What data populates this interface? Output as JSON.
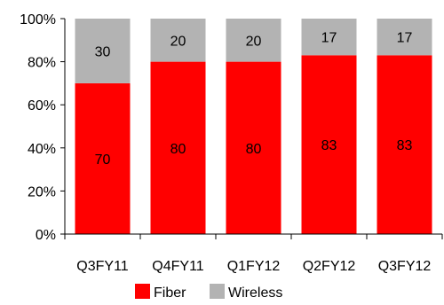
{
  "chart_data": {
    "type": "bar",
    "stacked": true,
    "categories": [
      "Q3FY11",
      "Q4FY11",
      "Q1FY12",
      "Q2FY12",
      "Q3FY12"
    ],
    "series": [
      {
        "name": "Fiber",
        "color": "#ff0000",
        "values": [
          70,
          80,
          80,
          83,
          83
        ]
      },
      {
        "name": "Wireless",
        "color": "#b3b3b3",
        "values": [
          30,
          20,
          20,
          17,
          17
        ]
      }
    ],
    "y_ticks": [
      "0%",
      "20%",
      "40%",
      "60%",
      "80%",
      "100%"
    ],
    "ylim": [
      0,
      100
    ],
    "grid": false,
    "legend": "bottom"
  }
}
